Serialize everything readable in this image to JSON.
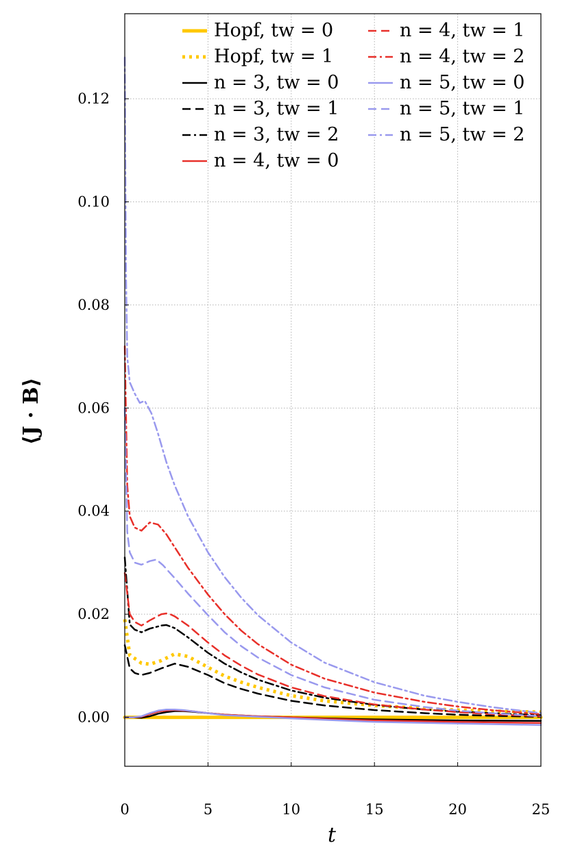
{
  "chart_data": {
    "type": "line",
    "xlabel": "t",
    "ylabel": "⟨J · B⟩",
    "xlim": [
      0,
      25
    ],
    "ylim": [
      -0.0095,
      0.1365
    ],
    "x_ticks": [
      0,
      5,
      10,
      15,
      20,
      25
    ],
    "x_tick_labels": [
      "0",
      "5",
      "10",
      "15",
      "20",
      "25"
    ],
    "y_ticks": [
      0.0,
      0.02,
      0.04,
      0.06,
      0.08,
      0.1,
      0.12
    ],
    "y_tick_labels": [
      "0.00",
      "0.02",
      "0.04",
      "0.06",
      "0.08",
      "0.10",
      "0.12"
    ],
    "grid": true,
    "grid_style": "dotted",
    "legend_position": "top-right",
    "legend_columns": 2,
    "series": [
      {
        "name": "Hopf, tw = 0",
        "color": "#FFC800",
        "dash": "solid",
        "width": 5,
        "x": [
          0,
          5,
          10,
          15,
          20,
          25
        ],
        "y": [
          0.0,
          0.0,
          0.0,
          0.0,
          0.0,
          0.0
        ]
      },
      {
        "name": "Hopf, tw = 1",
        "color": "#FFC800",
        "dash": "dotted",
        "width": 5,
        "x": [
          0,
          0.3,
          0.7,
          1.0,
          1.5,
          2.2,
          3.0,
          3.8,
          5,
          6,
          7,
          8,
          10,
          12,
          15,
          18,
          20,
          22,
          25
        ],
        "y": [
          0.019,
          0.012,
          0.0112,
          0.0105,
          0.0103,
          0.011,
          0.0123,
          0.0118,
          0.0097,
          0.008,
          0.0068,
          0.0058,
          0.0042,
          0.0032,
          0.0023,
          0.0017,
          0.0014,
          0.0012,
          0.001
        ]
      },
      {
        "name": "n = 3, tw = 0",
        "color": "#000000",
        "dash": "solid",
        "width": 2.5,
        "x": [
          0,
          0.5,
          1.0,
          1.5,
          2.0,
          2.5,
          3.0,
          3.5,
          4.0,
          5,
          6,
          8,
          10,
          12,
          15,
          20,
          25
        ],
        "y": [
          0.0,
          0.0,
          -0.0001,
          0.0002,
          0.0007,
          0.001,
          0.0012,
          0.0012,
          0.0011,
          0.0008,
          0.0005,
          0.0002,
          0.0,
          -0.0002,
          -0.0004,
          -0.0006,
          -0.0007
        ]
      },
      {
        "name": "n = 3, tw = 1",
        "color": "#000000",
        "dash": "dashed",
        "width": 2.5,
        "x": [
          0,
          0.3,
          0.6,
          1.0,
          1.5,
          2.2,
          3.0,
          3.8,
          5,
          6,
          7,
          8,
          10,
          12,
          15,
          18,
          20,
          22,
          25
        ],
        "y": [
          0.014,
          0.0095,
          0.0086,
          0.0082,
          0.0086,
          0.0095,
          0.0104,
          0.0098,
          0.0082,
          0.0066,
          0.0055,
          0.0046,
          0.0032,
          0.0023,
          0.0014,
          0.0008,
          0.0005,
          0.0003,
          0.0001
        ]
      },
      {
        "name": "n = 3, tw = 2",
        "color": "#000000",
        "dash": "dashdot",
        "width": 2.5,
        "x": [
          0,
          0.3,
          0.6,
          1.0,
          1.5,
          2.2,
          2.5,
          3.0,
          3.8,
          5,
          6,
          7,
          8,
          10,
          12,
          15,
          18,
          20,
          22,
          25
        ],
        "y": [
          0.031,
          0.018,
          0.017,
          0.0165,
          0.0172,
          0.0178,
          0.0179,
          0.0173,
          0.0155,
          0.0125,
          0.0104,
          0.0087,
          0.0073,
          0.0052,
          0.0038,
          0.0024,
          0.0015,
          0.0011,
          0.0008,
          0.0004
        ]
      },
      {
        "name": "n = 4, tw = 0",
        "color": "#E8302A",
        "dash": "solid",
        "width": 2.5,
        "x": [
          0,
          0.5,
          1.0,
          1.5,
          2.0,
          2.5,
          3.0,
          3.5,
          4.0,
          5,
          6,
          8,
          10,
          12,
          15,
          20,
          25
        ],
        "y": [
          0.0,
          0.0,
          0.0001,
          0.0006,
          0.0011,
          0.0013,
          0.0014,
          0.0013,
          0.0012,
          0.0008,
          0.0005,
          0.0002,
          0.0,
          -0.0003,
          -0.0006,
          -0.0009,
          -0.0011
        ]
      },
      {
        "name": "n = 4, tw = 1",
        "color": "#E8302A",
        "dash": "dashed",
        "width": 2.5,
        "x": [
          0,
          0.3,
          0.6,
          1.0,
          1.5,
          2.2,
          2.6,
          3.0,
          3.8,
          5,
          6,
          7,
          8,
          10,
          12,
          15,
          18,
          20,
          22,
          25
        ],
        "y": [
          0.028,
          0.02,
          0.0185,
          0.0178,
          0.0188,
          0.02,
          0.0202,
          0.0196,
          0.0178,
          0.0145,
          0.012,
          0.01,
          0.0083,
          0.0058,
          0.0041,
          0.0025,
          0.0015,
          0.001,
          0.0006,
          0.0002
        ]
      },
      {
        "name": "n = 4, tw = 2",
        "color": "#E8302A",
        "dash": "dashdot",
        "width": 2.5,
        "x": [
          0,
          0.15,
          0.3,
          0.6,
          1.0,
          1.5,
          2.0,
          2.5,
          3.0,
          3.8,
          5,
          6,
          7,
          8,
          10,
          12,
          15,
          18,
          20,
          22,
          25
        ],
        "y": [
          0.072,
          0.045,
          0.039,
          0.0368,
          0.0362,
          0.0378,
          0.0374,
          0.0355,
          0.033,
          0.029,
          0.0238,
          0.02,
          0.0168,
          0.0142,
          0.0102,
          0.0075,
          0.0048,
          0.003,
          0.0021,
          0.0014,
          0.0006
        ]
      },
      {
        "name": "n = 5, tw = 0",
        "color": "#9999EE",
        "dash": "solid",
        "width": 2.5,
        "x": [
          0,
          0.5,
          1.0,
          1.5,
          2.0,
          2.5,
          3.0,
          3.5,
          4.0,
          5,
          6,
          8,
          10,
          12,
          15,
          20,
          25
        ],
        "y": [
          0.0,
          0.0,
          0.0002,
          0.0008,
          0.0013,
          0.0015,
          0.0015,
          0.0014,
          0.0012,
          0.0008,
          0.0004,
          0.0001,
          -0.0002,
          -0.0005,
          -0.0009,
          -0.0012,
          -0.0015
        ]
      },
      {
        "name": "n = 5, tw = 1",
        "color": "#9999EE",
        "dash": "dashed",
        "width": 2.5,
        "x": [
          0,
          0.15,
          0.3,
          0.6,
          1.0,
          1.5,
          1.9,
          2.3,
          3.0,
          3.8,
          5,
          6,
          7,
          8,
          10,
          12,
          15,
          18,
          20,
          22,
          25
        ],
        "y": [
          0.06,
          0.036,
          0.032,
          0.03,
          0.0296,
          0.0303,
          0.0306,
          0.0295,
          0.027,
          0.024,
          0.0198,
          0.0165,
          0.0138,
          0.0116,
          0.0082,
          0.0058,
          0.0034,
          0.002,
          0.0013,
          0.0008,
          0.0002
        ]
      },
      {
        "name": "n = 5, tw = 2",
        "color": "#9999EE",
        "dash": "dashdot",
        "width": 2.5,
        "x": [
          0,
          0.08,
          0.15,
          0.3,
          0.6,
          0.9,
          1.2,
          1.6,
          2.0,
          2.5,
          3.0,
          3.8,
          5,
          6,
          7,
          8,
          10,
          12,
          15,
          18,
          20,
          22,
          25
        ],
        "y": [
          0.128,
          0.085,
          0.07,
          0.065,
          0.0628,
          0.061,
          0.0614,
          0.059,
          0.055,
          0.0495,
          0.045,
          0.039,
          0.032,
          0.0272,
          0.0232,
          0.0198,
          0.0145,
          0.0106,
          0.0068,
          0.0042,
          0.003,
          0.002,
          0.0008
        ]
      }
    ]
  }
}
